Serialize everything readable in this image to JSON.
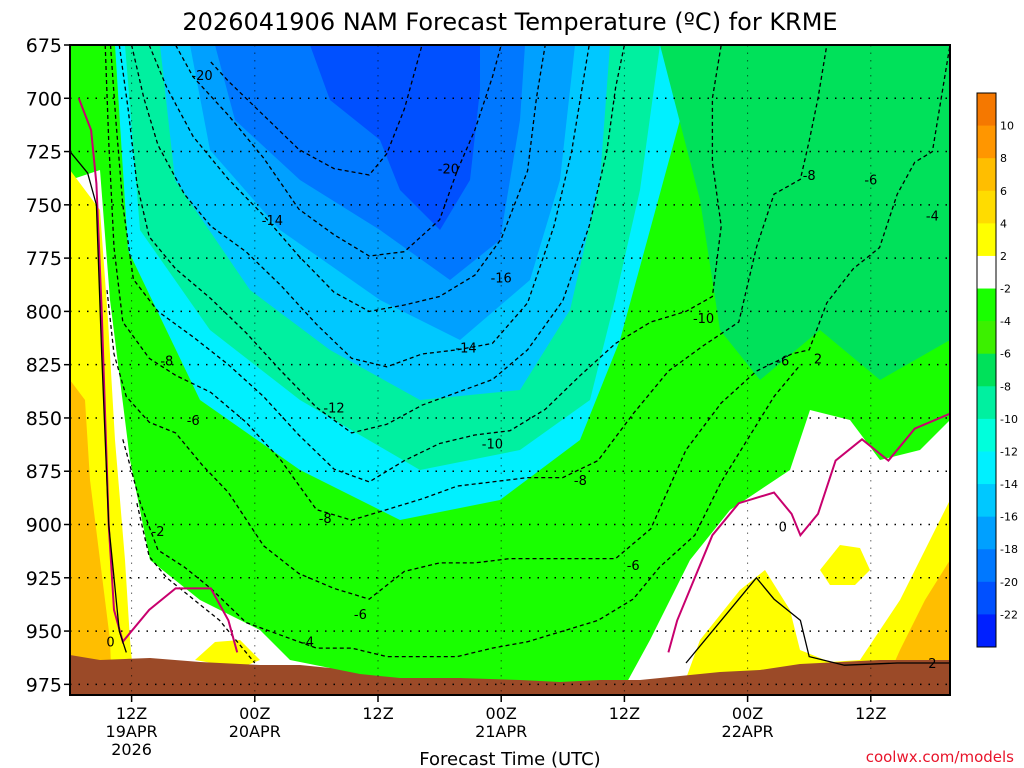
{
  "chart_data": {
    "type": "heatmap",
    "title": "2026041906 NAM Forecast Temperature (ºC) for KRME",
    "xlabel": "Forecast Time (UTC)",
    "ylabel": "",
    "credit": "coolwx.com/models",
    "y_ticks": [
      "675",
      "700",
      "725",
      "750",
      "775",
      "800",
      "825",
      "850",
      "875",
      "900",
      "925",
      "950",
      "975"
    ],
    "x_ticks": [
      {
        "label": "12Z",
        "sub1": "19APR",
        "sub2": "2026"
      },
      {
        "label": "00Z",
        "sub1": "20APR",
        "sub2": ""
      },
      {
        "label": "12Z",
        "sub1": "",
        "sub2": ""
      },
      {
        "label": "00Z",
        "sub1": "21APR",
        "sub2": ""
      },
      {
        "label": "12Z",
        "sub1": "",
        "sub2": ""
      },
      {
        "label": "00Z",
        "sub1": "22APR",
        "sub2": ""
      },
      {
        "label": "12Z",
        "sub1": "",
        "sub2": ""
      }
    ],
    "colorbar_labels": [
      "10",
      "8",
      "6",
      "4",
      "2",
      "-2",
      "-4",
      "-6",
      "-8",
      "-10",
      "-12",
      "-14",
      "-16",
      "-18",
      "-20",
      "-22"
    ],
    "colorbar_colors": [
      "#f57800",
      "#ff9600",
      "#ffbe00",
      "#ffdc00",
      "#ffff00",
      "#ffffff",
      "#19ff00",
      "#3cf000",
      "#00e15a",
      "#00f0a0",
      "#00ffdc",
      "#00f0ff",
      "#00c8ff",
      "#00a0ff",
      "#0078ff",
      "#0050ff",
      "#0020ff"
    ],
    "contour_labels": [
      {
        "text": "-20",
        "t": 7.5,
        "p": 689
      },
      {
        "text": "-20",
        "t": 21.5,
        "p": 733
      },
      {
        "text": "-14",
        "t": 11.5,
        "p": 757
      },
      {
        "text": "-16",
        "t": 24.5,
        "p": 784
      },
      {
        "text": "-8",
        "t": 5.5,
        "p": 823
      },
      {
        "text": "-14",
        "t": 22.5,
        "p": 817
      },
      {
        "text": "-12",
        "t": 15,
        "p": 845
      },
      {
        "text": "-10",
        "t": 24,
        "p": 862
      },
      {
        "text": "-10",
        "t": 36,
        "p": 803
      },
      {
        "text": "-6",
        "t": 7,
        "p": 851
      },
      {
        "text": "-8",
        "t": 29,
        "p": 879
      },
      {
        "text": "-8",
        "t": 14.5,
        "p": 897
      },
      {
        "text": "-6",
        "t": 32,
        "p": 919
      },
      {
        "text": "-6",
        "t": 16.5,
        "p": 942
      },
      {
        "text": "-4",
        "t": 13.5,
        "p": 955
      },
      {
        "text": "-2",
        "t": 5,
        "p": 903
      },
      {
        "text": "0",
        "t": 2.3,
        "p": 955
      },
      {
        "text": "0",
        "t": 40.5,
        "p": 901
      },
      {
        "text": "-6",
        "t": 40.5,
        "p": 823
      },
      {
        "text": "2",
        "t": 42.5,
        "p": 822
      },
      {
        "text": "-8",
        "t": 42,
        "p": 736
      },
      {
        "text": "-6",
        "t": 45.5,
        "p": 738
      },
      {
        "text": "-4",
        "t": 49,
        "p": 755
      },
      {
        "text": "2",
        "t": 49,
        "p": 965
      }
    ],
    "series": [
      {
        "name": "-20",
        "values": [
          [
            8,
            683
          ],
          [
            9,
            692
          ],
          [
            11,
            708
          ],
          [
            13,
            724
          ],
          [
            15,
            733
          ],
          [
            17,
            736
          ],
          [
            18,
            726
          ],
          [
            19,
            705
          ],
          [
            19.5,
            690
          ],
          [
            20,
            675
          ]
        ]
      },
      {
        "name": "-18",
        "values": [
          [
            6,
            675
          ],
          [
            7,
            690
          ],
          [
            9,
            708
          ],
          [
            11,
            728
          ],
          [
            13,
            752
          ],
          [
            15,
            764
          ],
          [
            17,
            774
          ],
          [
            19,
            772
          ],
          [
            21,
            757
          ],
          [
            22,
            734
          ],
          [
            23,
            715
          ],
          [
            24,
            690
          ],
          [
            24.5,
            675
          ]
        ]
      },
      {
        "name": "-16",
        "values": [
          [
            4.5,
            675
          ],
          [
            5.5,
            695
          ],
          [
            7,
            718
          ],
          [
            9,
            738
          ],
          [
            11,
            755
          ],
          [
            13,
            774
          ],
          [
            15,
            791
          ],
          [
            17,
            800
          ],
          [
            19,
            797
          ],
          [
            21,
            793
          ],
          [
            23,
            783
          ],
          [
            24.5,
            766
          ],
          [
            26,
            734
          ],
          [
            26.5,
            700
          ],
          [
            27,
            675
          ]
        ]
      },
      {
        "name": "-14",
        "values": [
          [
            3.5,
            675
          ],
          [
            4.2,
            700
          ],
          [
            5,
            722
          ],
          [
            6.5,
            745
          ],
          [
            8,
            760
          ],
          [
            10,
            772
          ],
          [
            12,
            788
          ],
          [
            14,
            806
          ],
          [
            16,
            822
          ],
          [
            18,
            826
          ],
          [
            20,
            820
          ],
          [
            22,
            818
          ],
          [
            24,
            815
          ],
          [
            26,
            796
          ],
          [
            27.5,
            760
          ],
          [
            28.5,
            725
          ],
          [
            29,
            700
          ],
          [
            29.5,
            675
          ]
        ]
      },
      {
        "name": "-12",
        "values": [
          [
            2.8,
            675
          ],
          [
            3.3,
            705
          ],
          [
            3.8,
            740
          ],
          [
            4.5,
            765
          ],
          [
            6,
            780
          ],
          [
            8,
            794
          ],
          [
            10,
            810
          ],
          [
            12,
            828
          ],
          [
            14,
            845
          ],
          [
            16,
            857
          ],
          [
            18,
            853
          ],
          [
            20,
            844
          ],
          [
            22,
            838
          ],
          [
            24,
            832
          ],
          [
            26,
            818
          ],
          [
            28,
            795
          ],
          [
            29.5,
            760
          ],
          [
            30.5,
            725
          ],
          [
            31,
            695
          ],
          [
            31.5,
            675
          ]
        ]
      },
      {
        "name": "-10",
        "values": [
          [
            2.3,
            675
          ],
          [
            2.6,
            710
          ],
          [
            3,
            750
          ],
          [
            3.6,
            785
          ],
          [
            5,
            800
          ],
          [
            7,
            812
          ],
          [
            9,
            825
          ],
          [
            11,
            840
          ],
          [
            13,
            858
          ],
          [
            15,
            874
          ],
          [
            17,
            880
          ],
          [
            19,
            870
          ],
          [
            21,
            862
          ],
          [
            23,
            858
          ],
          [
            25,
            856
          ],
          [
            27,
            846
          ],
          [
            29,
            830
          ],
          [
            31,
            815
          ],
          [
            33,
            805
          ],
          [
            35,
            800
          ],
          [
            36.5,
            793
          ],
          [
            37,
            760
          ],
          [
            36.5,
            730
          ],
          [
            36.5,
            700
          ],
          [
            37,
            675
          ]
        ]
      },
      {
        "name": "-8",
        "values": [
          [
            2,
            675
          ],
          [
            2.2,
            720
          ],
          [
            2.5,
            770
          ],
          [
            3,
            805
          ],
          [
            4.5,
            822
          ],
          [
            6,
            830
          ],
          [
            8,
            838
          ],
          [
            10,
            852
          ],
          [
            12,
            870
          ],
          [
            14,
            893
          ],
          [
            16,
            898
          ],
          [
            18,
            893
          ],
          [
            20,
            888
          ],
          [
            22,
            882
          ],
          [
            24,
            880
          ],
          [
            26,
            878
          ],
          [
            28,
            878
          ],
          [
            30,
            870
          ],
          [
            32,
            848
          ],
          [
            34,
            828
          ],
          [
            36,
            816
          ],
          [
            38,
            805
          ],
          [
            39,
            770
          ],
          [
            40,
            745
          ],
          [
            41.5,
            738
          ],
          [
            42,
            720
          ],
          [
            42.5,
            700
          ],
          [
            43,
            675
          ]
        ]
      },
      {
        "name": "-6",
        "values": [
          [
            2.1,
            790
          ],
          [
            2.5,
            820
          ],
          [
            3.2,
            840
          ],
          [
            4.5,
            852
          ],
          [
            6,
            857
          ],
          [
            7.5,
            872
          ],
          [
            9,
            885
          ],
          [
            11,
            910
          ],
          [
            13,
            923
          ],
          [
            15,
            930
          ],
          [
            17,
            935
          ],
          [
            19,
            922
          ],
          [
            21,
            918
          ],
          [
            23,
            918
          ],
          [
            25,
            916
          ],
          [
            27,
            916
          ],
          [
            29,
            916
          ],
          [
            31,
            916
          ],
          [
            33,
            902
          ],
          [
            35,
            865
          ],
          [
            37,
            843
          ],
          [
            39,
            828
          ],
          [
            41,
            820
          ],
          [
            42,
            818
          ],
          [
            43,
            796
          ],
          [
            44.5,
            780
          ],
          [
            46,
            770
          ],
          [
            47,
            745
          ],
          [
            48,
            730
          ],
          [
            49,
            725
          ],
          [
            49.5,
            700
          ],
          [
            50,
            675
          ]
        ]
      },
      {
        "name": "-4",
        "values": [
          [
            3,
            860
          ],
          [
            4,
            890
          ],
          [
            5,
            912
          ],
          [
            6.5,
            920
          ],
          [
            8,
            930
          ],
          [
            10,
            946
          ],
          [
            12,
            952
          ],
          [
            14,
            958
          ],
          [
            16,
            958
          ],
          [
            18,
            962
          ],
          [
            20,
            962
          ],
          [
            22,
            962
          ],
          [
            24,
            958
          ],
          [
            26,
            955
          ],
          [
            28,
            950
          ],
          [
            30,
            945
          ],
          [
            32,
            935
          ],
          [
            33.5,
            920
          ],
          [
            35.5,
            905
          ],
          [
            37,
            880
          ],
          [
            38.5,
            860
          ],
          [
            40,
            840
          ],
          [
            41.5,
            825
          ]
        ]
      },
      {
        "name": "-2",
        "values": [
          [
            3.8,
            890
          ],
          [
            4.5,
            915
          ],
          [
            5.5,
            925
          ],
          [
            7,
            935
          ],
          [
            8.5,
            945
          ],
          [
            9.5,
            955
          ],
          [
            10.5,
            965
          ]
        ]
      },
      {
        "name": "0",
        "values": [
          [
            0.5,
            700
          ],
          [
            1.2,
            715
          ],
          [
            1.5,
            740
          ],
          [
            1.8,
            800
          ],
          [
            2.2,
            900
          ],
          [
            2.5,
            940
          ],
          [
            3,
            955
          ],
          [
            4.5,
            940
          ],
          [
            6,
            930
          ],
          [
            8,
            930
          ],
          [
            9,
            945
          ],
          [
            9.5,
            960
          ]
        ]
      },
      {
        "name": "0b",
        "values": [
          [
            34,
            960
          ],
          [
            34.5,
            945
          ],
          [
            35.5,
            925
          ],
          [
            36.5,
            905
          ],
          [
            38,
            890
          ],
          [
            40,
            885
          ],
          [
            41,
            895
          ],
          [
            41.5,
            905
          ],
          [
            42.5,
            895
          ],
          [
            43.5,
            870
          ],
          [
            45,
            860
          ],
          [
            46.5,
            870
          ],
          [
            48,
            855
          ],
          [
            50,
            848
          ]
        ]
      },
      {
        "name": "2",
        "values": [
          [
            0,
            725
          ],
          [
            1,
            735
          ],
          [
            1.5,
            750
          ],
          [
            1.8,
            820
          ],
          [
            2.2,
            900
          ],
          [
            2.8,
            950
          ],
          [
            3.2,
            960
          ]
        ]
      },
      {
        "name": "2b",
        "values": [
          [
            35,
            965
          ],
          [
            36,
            955
          ],
          [
            37.5,
            940
          ],
          [
            39,
            925
          ],
          [
            40,
            935
          ],
          [
            41.5,
            945
          ],
          [
            42,
            962
          ],
          [
            44,
            966
          ],
          [
            47,
            965
          ],
          [
            50,
            965
          ]
        ]
      }
    ],
    "xlim": [
      0,
      50
    ],
    "ylim": [
      675,
      980
    ],
    "grid": true
  }
}
